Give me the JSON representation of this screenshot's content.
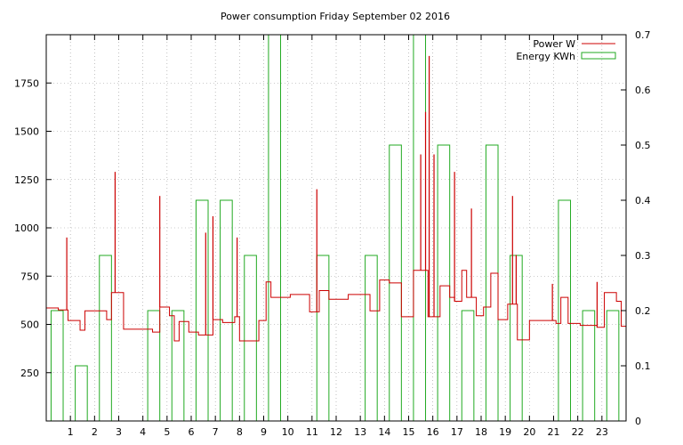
{
  "chart_data": {
    "type": "line",
    "title": "Power consumption Friday September 02 2016",
    "xlabel": "",
    "ylabel": "",
    "y2label": "",
    "xlim": [
      0,
      24
    ],
    "ylim": [
      0,
      2000
    ],
    "y2lim": [
      0,
      0.7
    ],
    "x_ticks": [
      1,
      2,
      3,
      4,
      5,
      6,
      7,
      8,
      9,
      10,
      11,
      12,
      13,
      14,
      15,
      16,
      17,
      18,
      19,
      20,
      21,
      22,
      23
    ],
    "y_ticks": [
      250,
      500,
      750,
      1000,
      1250,
      1500,
      1750
    ],
    "y2_ticks": [
      0,
      0.1,
      0.2,
      0.3,
      0.4,
      0.5,
      0.6,
      0.7
    ],
    "grid": true,
    "legend_position": "top-right",
    "colors": {
      "power": "#cc0000",
      "energy": "#22aa22",
      "grid": "#999999"
    },
    "series": [
      {
        "name": "Power W",
        "axis": "left",
        "style": "step",
        "points": [
          [
            0.0,
            585
          ],
          [
            0.5,
            575
          ],
          [
            0.9,
            520
          ],
          [
            1.4,
            470
          ],
          [
            1.6,
            570
          ],
          [
            2.4,
            570
          ],
          [
            2.5,
            525
          ],
          [
            2.7,
            665
          ],
          [
            3.2,
            475
          ],
          [
            3.9,
            475
          ],
          [
            4.4,
            460
          ],
          [
            4.7,
            590
          ],
          [
            5.1,
            545
          ],
          [
            5.3,
            415
          ],
          [
            5.5,
            515
          ],
          [
            5.9,
            460
          ],
          [
            6.3,
            445
          ],
          [
            6.9,
            525
          ],
          [
            7.3,
            510
          ],
          [
            7.8,
            540
          ],
          [
            8.0,
            415
          ],
          [
            8.8,
            520
          ],
          [
            9.1,
            720
          ],
          [
            9.3,
            640
          ],
          [
            10.1,
            655
          ],
          [
            10.9,
            565
          ],
          [
            11.3,
            675
          ],
          [
            11.7,
            630
          ],
          [
            12.5,
            655
          ],
          [
            13.4,
            570
          ],
          [
            13.8,
            730
          ],
          [
            14.2,
            715
          ],
          [
            14.7,
            540
          ],
          [
            15.2,
            780
          ],
          [
            15.8,
            540
          ],
          [
            16.3,
            700
          ],
          [
            16.7,
            640
          ],
          [
            16.9,
            620
          ],
          [
            17.2,
            780
          ],
          [
            17.4,
            640
          ],
          [
            17.8,
            545
          ],
          [
            18.1,
            590
          ],
          [
            18.4,
            765
          ],
          [
            18.7,
            525
          ],
          [
            19.1,
            605
          ],
          [
            19.5,
            420
          ],
          [
            20.0,
            520
          ],
          [
            21.1,
            505
          ],
          [
            21.3,
            640
          ],
          [
            21.6,
            505
          ],
          [
            22.1,
            495
          ],
          [
            22.8,
            485
          ],
          [
            23.1,
            665
          ],
          [
            23.6,
            620
          ],
          [
            23.8,
            490
          ],
          [
            24.0,
            495
          ]
        ],
        "spikes": [
          [
            0.85,
            950
          ],
          [
            2.85,
            1290
          ],
          [
            4.7,
            1165
          ],
          [
            6.6,
            975
          ],
          [
            6.9,
            1060
          ],
          [
            7.9,
            950
          ],
          [
            11.2,
            1200
          ],
          [
            15.5,
            1380
          ],
          [
            15.7,
            1600
          ],
          [
            15.85,
            1890
          ],
          [
            16.05,
            1380
          ],
          [
            16.9,
            1290
          ],
          [
            17.6,
            1100
          ],
          [
            19.3,
            1165
          ],
          [
            19.45,
            860
          ],
          [
            20.95,
            710
          ],
          [
            22.8,
            720
          ]
        ]
      },
      {
        "name": "Energy KWh",
        "axis": "right",
        "style": "bar",
        "bins": [
          [
            0,
            0.2
          ],
          [
            1,
            0.1
          ],
          [
            2,
            0.3
          ],
          [
            3,
            0.0
          ],
          [
            4,
            0.2
          ],
          [
            5,
            0.2
          ],
          [
            6,
            0.4
          ],
          [
            7,
            0.4
          ],
          [
            8,
            0.3
          ],
          [
            9,
            0.7
          ],
          [
            10,
            0.0
          ],
          [
            11,
            0.3
          ],
          [
            12,
            0.0
          ],
          [
            13,
            0.3
          ],
          [
            14,
            0.5
          ],
          [
            15,
            0.7
          ],
          [
            16,
            0.5
          ],
          [
            17,
            0.2
          ],
          [
            18,
            0.5
          ],
          [
            19,
            0.3
          ],
          [
            20,
            0.0
          ],
          [
            21,
            0.4
          ],
          [
            22,
            0.2
          ],
          [
            23,
            0.2
          ]
        ]
      }
    ]
  }
}
